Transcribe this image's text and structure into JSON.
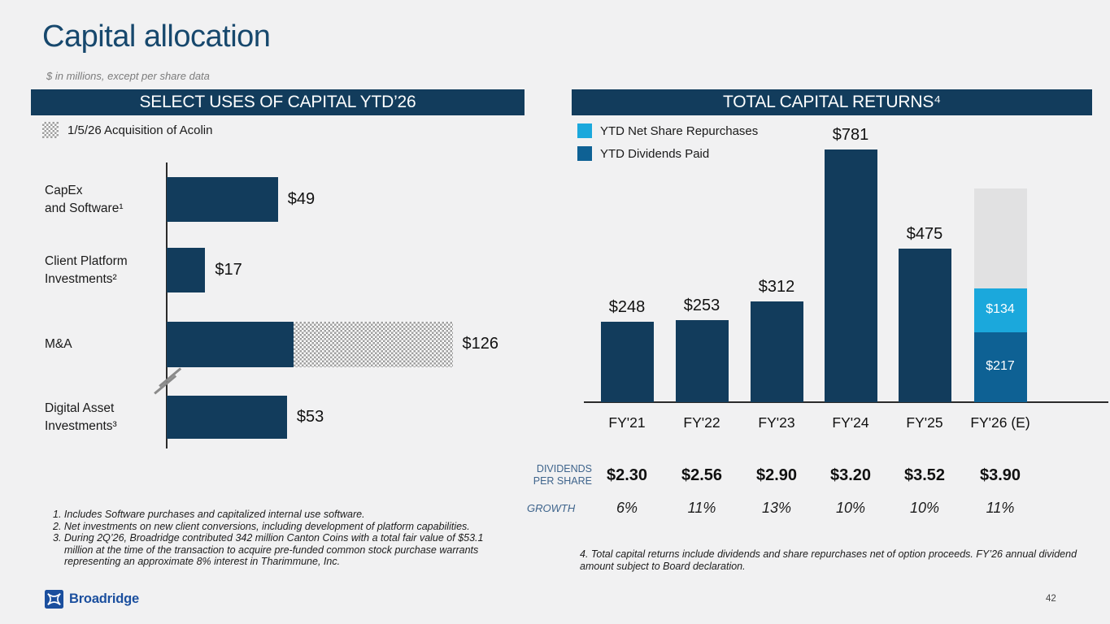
{
  "slide": {
    "title": "Capital allocation",
    "subtitle": "$ in millions, except per share data",
    "page_number": "42",
    "logo_text": "Broadridge",
    "colors": {
      "navy": "#123c5c",
      "light_blue": "#1ba8dc",
      "medium_blue": "#0e6194",
      "estimate_gray": "#e1e1e2",
      "background": "#f1f1f2",
      "title_blue": "#17486d"
    }
  },
  "left_panel": {
    "header": "SELECT USES OF CAPITAL YTD’26",
    "legend_label": "1/5/26 Acquisition of Acolin",
    "footnotes": [
      "1. Includes Software purchases and capitalized internal use software.",
      "2. Net investments on new client conversions, including development of platform capabilities.",
      "3. During 2Q’26, Broadridge contributed 342 million Canton Coins with a total fair value of $53.1 million at the time of the transaction to acquire pre-funded common stock purchase warrants representing an approximate 8% interest in Tharimmune, Inc."
    ]
  },
  "right_panel": {
    "header": "TOTAL CAPITAL RETURNS⁴",
    "legend": [
      {
        "label": "YTD Net Share Repurchases",
        "color": "#1ba8dc"
      },
      {
        "label": "YTD Dividends Paid",
        "color": "#0e6194"
      }
    ],
    "footnote": "4. Total capital returns include dividends and share repurchases net of option proceeds. FY’26 annual dividend amount subject to Board declaration."
  },
  "chart_data": [
    {
      "type": "bar",
      "orientation": "horizontal",
      "title": "SELECT USES OF CAPITAL YTD'26",
      "unit": "$ millions",
      "categories": [
        "CapEx and Software¹",
        "Client Platform Investments²",
        "M&A",
        "Digital Asset Investments³"
      ],
      "categories_lines": [
        [
          "CapEx",
          "and Software¹"
        ],
        [
          "Client Platform",
          "Investments²"
        ],
        [
          "M&A"
        ],
        [
          "Digital Asset",
          "Investments³"
        ]
      ],
      "values": [
        49,
        17,
        126,
        53
      ],
      "data_labels": [
        "$49",
        "$17",
        "$126",
        "$53"
      ],
      "ma_split": {
        "solid_value": 56,
        "hatched_value": 70,
        "hatched_meaning": "1/5/26 Acquisition of Acolin (hatched portion, estimated from bar)"
      },
      "axis_break_after": "M&A",
      "grid": false
    },
    {
      "type": "bar",
      "orientation": "vertical",
      "stacked": true,
      "title": "TOTAL CAPITAL RETURNS",
      "unit": "$ millions",
      "ylim": [
        0,
        800
      ],
      "grid": false,
      "legend_position": "top-left",
      "categories": [
        "FY'21",
        "FY'22",
        "FY'23",
        "FY'24",
        "FY'25",
        "FY'26 (E)"
      ],
      "bars": [
        {
          "category": "FY'21",
          "label": "$248",
          "segments": [
            {
              "name": "total-capital-returns",
              "value": 248,
              "color": "#123c5c"
            }
          ]
        },
        {
          "category": "FY'22",
          "label": "$253",
          "segments": [
            {
              "name": "total-capital-returns",
              "value": 253,
              "color": "#123c5c"
            }
          ]
        },
        {
          "category": "FY'23",
          "label": "$312",
          "segments": [
            {
              "name": "total-capital-returns",
              "value": 312,
              "color": "#123c5c"
            }
          ]
        },
        {
          "category": "FY'24",
          "label": "$781",
          "segments": [
            {
              "name": "total-capital-returns",
              "value": 781,
              "color": "#123c5c"
            }
          ]
        },
        {
          "category": "FY'25",
          "label": "$475",
          "segments": [
            {
              "name": "total-capital-returns",
              "value": 475,
              "color": "#123c5c"
            }
          ]
        },
        {
          "category": "FY'26 (E)",
          "label": "",
          "segments": [
            {
              "name": "ytd-dividends-paid",
              "value": 217,
              "label": "$217",
              "color": "#0e6194"
            },
            {
              "name": "ytd-net-share-repurchases",
              "value": 134,
              "label": "$134",
              "color": "#1ba8dc"
            },
            {
              "name": "estimated-remainder",
              "value": 309,
              "label": "",
              "color": "#e1e1e2",
              "estimated": true
            }
          ]
        }
      ]
    }
  ],
  "dividends_table": {
    "row1_label_lines": [
      "DIVIDENDS",
      "PER SHARE"
    ],
    "row2_label": "GROWTH",
    "dividends": [
      "$2.30",
      "$2.56",
      "$2.90",
      "$3.20",
      "$3.52",
      "$3.90"
    ],
    "growth": [
      "6%",
      "11%",
      "13%",
      "10%",
      "10%",
      "11%"
    ]
  }
}
